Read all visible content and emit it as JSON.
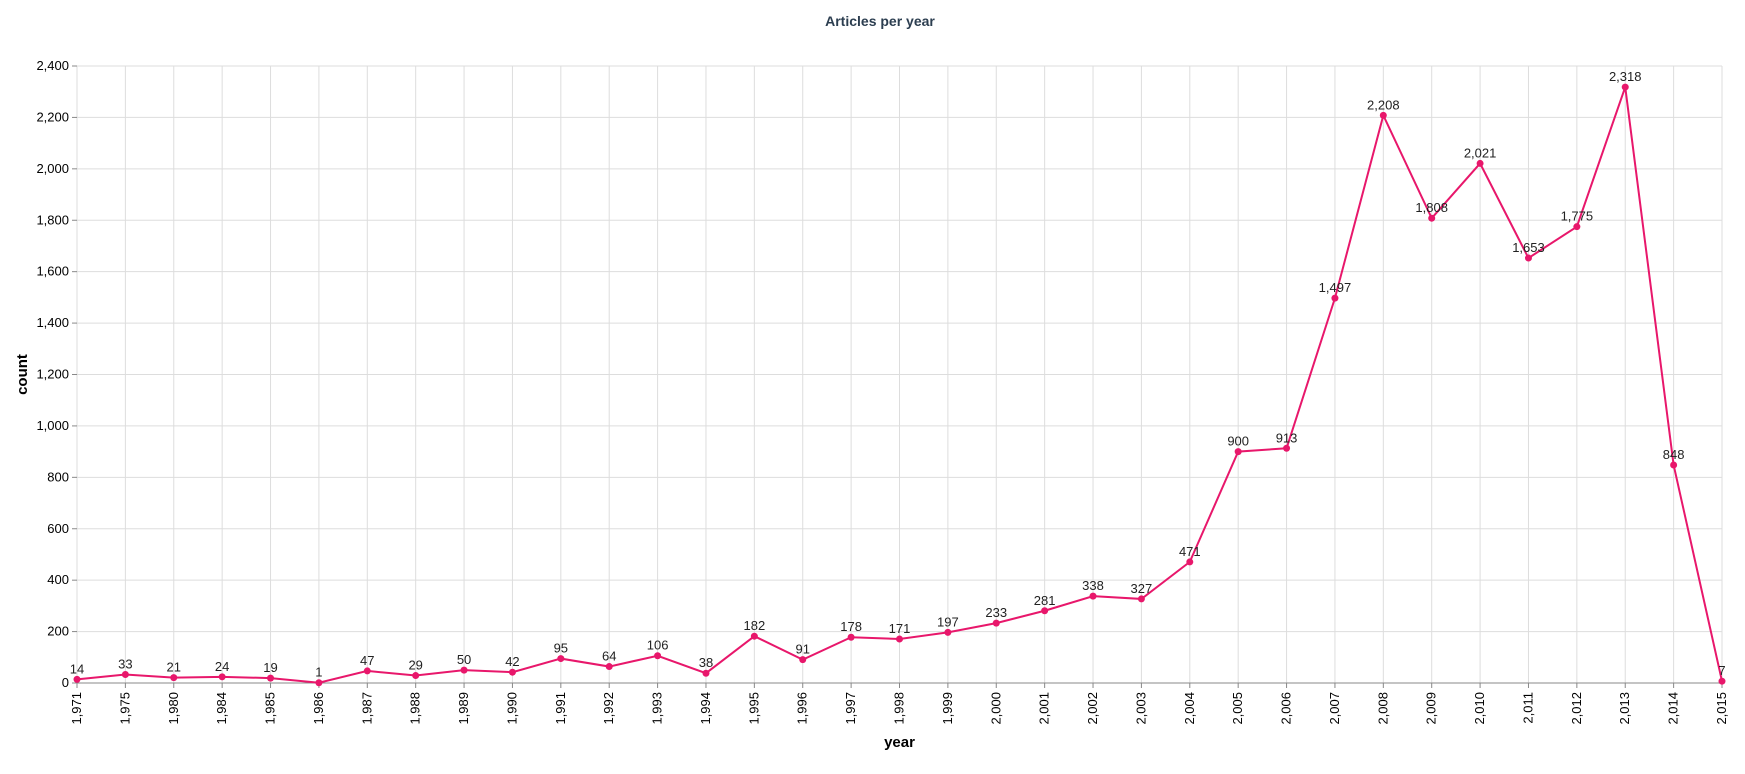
{
  "chart_data": {
    "type": "line",
    "title": "Articles per year",
    "xlabel": "year",
    "ylabel": "count",
    "ylim": [
      0,
      2400
    ],
    "yticks": [
      0,
      200,
      400,
      600,
      800,
      1000,
      1200,
      1400,
      1600,
      1800,
      2000,
      2200,
      2400
    ],
    "ytick_labels": [
      "0",
      "200",
      "400",
      "600",
      "800",
      "1,000",
      "1,200",
      "1,400",
      "1,600",
      "1,800",
      "2,000",
      "2,200",
      "2,400"
    ],
    "grid": true,
    "categories": [
      "1,971",
      "1,975",
      "1,980",
      "1,984",
      "1,985",
      "1,986",
      "1,987",
      "1,988",
      "1,989",
      "1,990",
      "1,991",
      "1,992",
      "1,993",
      "1,994",
      "1,995",
      "1,996",
      "1,997",
      "1,998",
      "1,999",
      "2,000",
      "2,001",
      "2,002",
      "2,003",
      "2,004",
      "2,005",
      "2,006",
      "2,007",
      "2,008",
      "2,009",
      "2,010",
      "2,011",
      "2,012",
      "2,013",
      "2,014",
      "2,015"
    ],
    "values": [
      14,
      33,
      21,
      24,
      19,
      1,
      47,
      29,
      50,
      42,
      95,
      64,
      106,
      38,
      182,
      91,
      178,
      171,
      197,
      233,
      281,
      338,
      327,
      471,
      900,
      913,
      1497,
      2208,
      1808,
      2021,
      1653,
      1775,
      2318,
      848,
      7
    ],
    "data_labels": [
      "14",
      "33",
      "21",
      "24",
      "19",
      "1",
      "47",
      "29",
      "50",
      "42",
      "95",
      "64",
      "106",
      "38",
      "182",
      "91",
      "178",
      "171",
      "197",
      "233",
      "281",
      "338",
      "327",
      "471",
      "900",
      "913",
      "1,497",
      "2,208",
      "1,808",
      "2,021",
      "1,653",
      "1,775",
      "2,318",
      "848",
      "7"
    ],
    "color": "#e8176b"
  }
}
